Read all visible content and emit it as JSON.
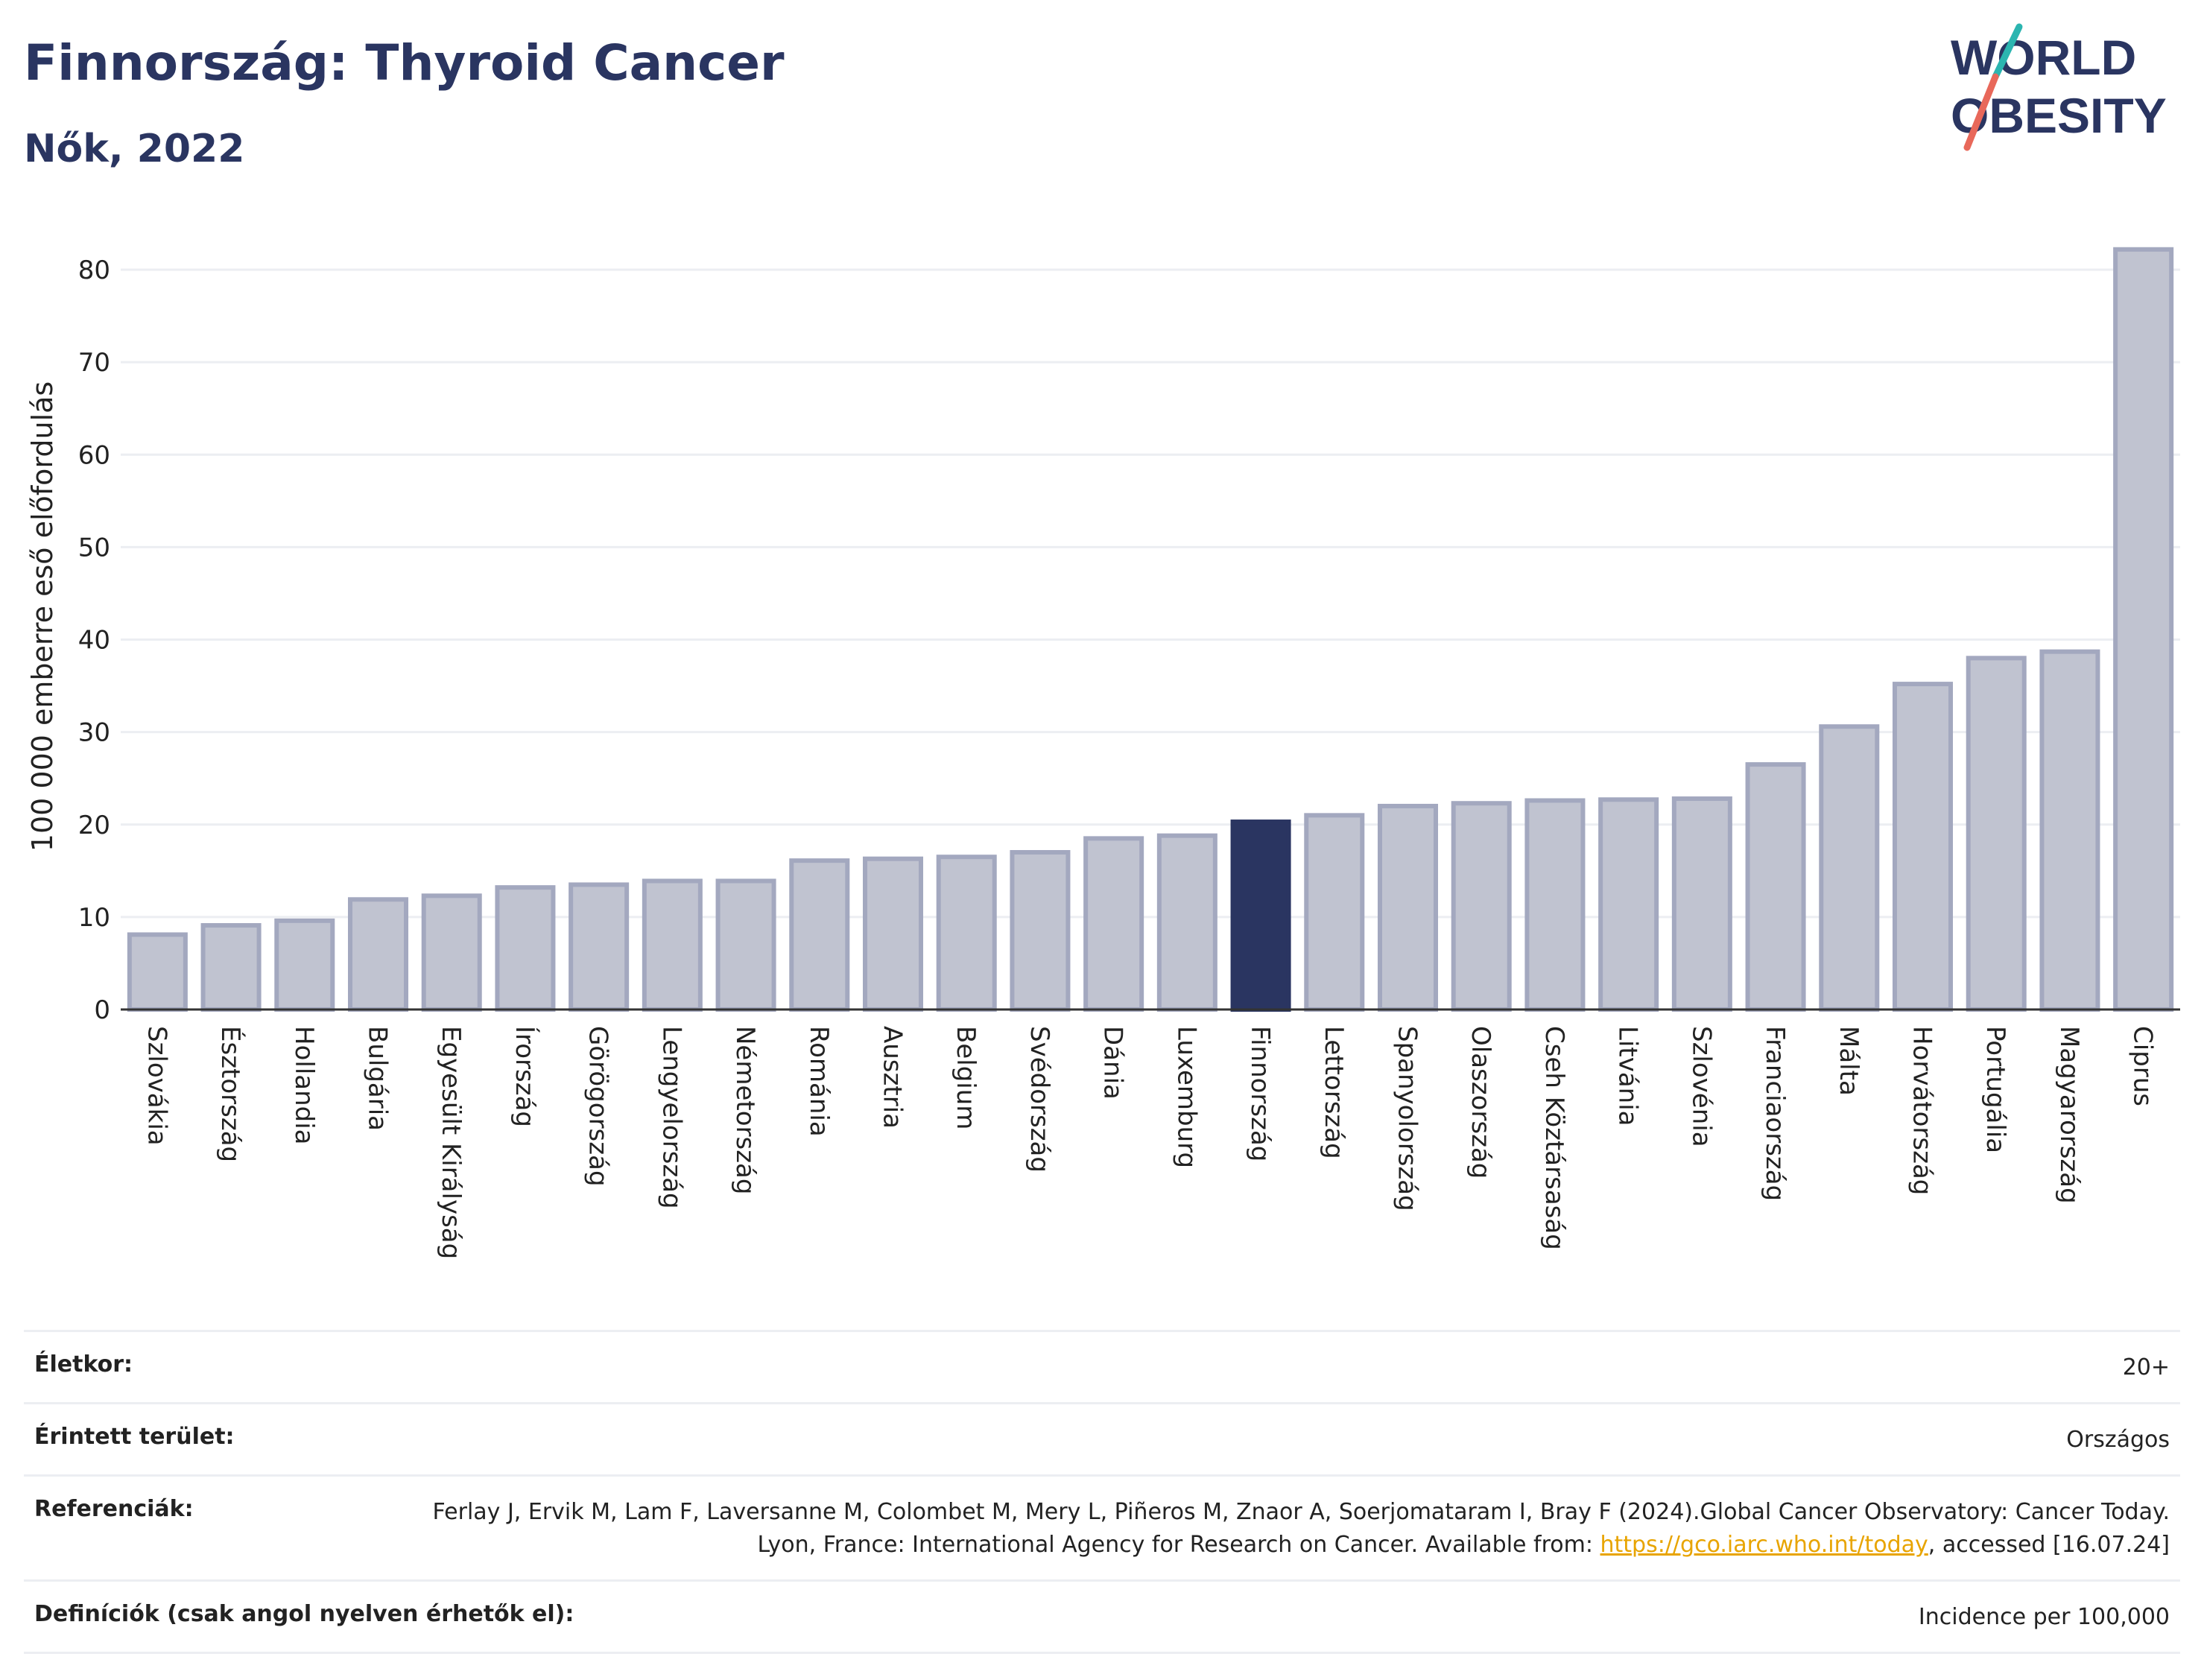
{
  "header": {
    "title": "Finnország: Thyroid Cancer",
    "subtitle": "Nők, 2022"
  },
  "logo": {
    "line1": "WORLD",
    "line2": "OBESITY",
    "colors": {
      "text": "#2a3561",
      "slash_teal": "#2bb5b0",
      "slash_red": "#e8685a"
    }
  },
  "chart_data": {
    "type": "bar",
    "ylabel": "100 000 emberre eső előfordulás",
    "ylim": [
      0,
      85
    ],
    "yticks": [
      0,
      10,
      20,
      30,
      40,
      50,
      60,
      70,
      80
    ],
    "grid": true,
    "highlight": "Finnország",
    "colors": {
      "bar": "#c0c3d0",
      "bar_border": "#a3a8bf",
      "highlight": "#2a3561"
    },
    "categories": [
      "Szlovákia",
      "Észtország",
      "Hollandia",
      "Bulgária",
      "Egyesült Királyság",
      "Írország",
      "Görögország",
      "Lengyelország",
      "Németország",
      "Románia",
      "Ausztria",
      "Belgium",
      "Svédország",
      "Dánia",
      "Luxemburg",
      "Finnország",
      "Lettország",
      "Spanyolország",
      "Olaszország",
      "Cseh Köztársaság",
      "Litvánia",
      "Szlovénia",
      "Franciaország",
      "Málta",
      "Horvátország",
      "Portugália",
      "Magyarország",
      "Ciprus"
    ],
    "values": [
      8.1,
      9.1,
      9.6,
      11.9,
      12.3,
      13.2,
      13.5,
      13.9,
      13.9,
      16.1,
      16.3,
      16.5,
      17.0,
      18.5,
      18.8,
      20.3,
      21.0,
      22.0,
      22.3,
      22.6,
      22.7,
      22.8,
      26.5,
      30.6,
      35.2,
      38.0,
      38.7,
      82.2
    ]
  },
  "meta": {
    "age_label": "Életkor:",
    "age_value": "20+",
    "area_label": "Érintett terület:",
    "area_value": "Országos",
    "ref_label": "Referenciák:",
    "ref_text_1": "Ferlay J, Ervik M, Lam F, Laversanne M, Colombet M, Mery L, Piñeros M, Znaor A, Soerjomataram I, Bray F (2024).Global Cancer Observatory: Cancer Today. Lyon, France: International Agency for Research on Cancer. Available from: ",
    "ref_link": "https://gco.iarc.who.int/today",
    "ref_text_2": ", accessed [16.07.24]",
    "def_label": "Definíciók (csak angol nyelven érhetők el):",
    "def_value": "Incidence per 100,000"
  }
}
